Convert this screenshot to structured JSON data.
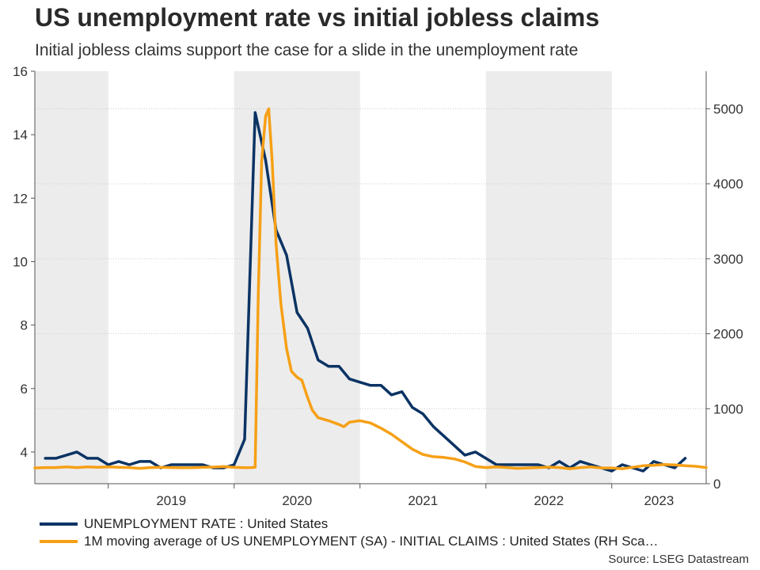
{
  "title": "US unemployment rate vs initial jobless claims",
  "subtitle": "Initial jobless claims support the case for a slide in the unemployment rate",
  "source": "Source: LSEG Datastream",
  "colors": {
    "unemployment": "#0b3364",
    "claims": "#f6a016",
    "shade": "#ececec",
    "grid": "#cccccc",
    "axis": "#555555"
  },
  "legend": [
    {
      "label": "UNEMPLOYMENT RATE : United States",
      "color": "#0b3364"
    },
    {
      "label": "1M moving average of US UNEMPLOYMENT (SA) - INITIAL CLAIMS : United States (RH Sca…",
      "color": "#f6a016"
    }
  ],
  "chart_data": {
    "type": "line",
    "title": "US unemployment rate vs initial jobless claims",
    "subtitle": "Initial jobless claims support the case for a slide in the unemployment rate",
    "x_range": [
      "2018-06",
      "2023-10"
    ],
    "x_tick_labels": [
      "2019",
      "2020",
      "2021",
      "2022",
      "2023"
    ],
    "shaded_years": [
      "2018",
      "2020",
      "2022"
    ],
    "y_left": {
      "min": 3,
      "max": 16,
      "ticks": [
        4,
        6,
        8,
        10,
        12,
        14,
        16
      ]
    },
    "y_right": {
      "min": 0,
      "max": 5500,
      "ticks": [
        0,
        1000,
        2000,
        3000,
        4000,
        5000
      ]
    },
    "grid": "horizontal dotted",
    "legend_position": "bottom",
    "series": [
      {
        "name": "UNEMPLOYMENT RATE : United States",
        "axis": "left",
        "color": "#0b3364",
        "points": [
          [
            "2018-07",
            3.8
          ],
          [
            "2018-08",
            3.8
          ],
          [
            "2018-09",
            3.9
          ],
          [
            "2018-10",
            4.0
          ],
          [
            "2018-11",
            3.8
          ],
          [
            "2018-12",
            3.8
          ],
          [
            "2019-01",
            3.6
          ],
          [
            "2019-02",
            3.7
          ],
          [
            "2019-03",
            3.6
          ],
          [
            "2019-04",
            3.7
          ],
          [
            "2019-05",
            3.7
          ],
          [
            "2019-06",
            3.5
          ],
          [
            "2019-07",
            3.6
          ],
          [
            "2019-08",
            3.6
          ],
          [
            "2019-09",
            3.6
          ],
          [
            "2019-10",
            3.6
          ],
          [
            "2019-11",
            3.5
          ],
          [
            "2019-12",
            3.5
          ],
          [
            "2020-01",
            3.6
          ],
          [
            "2020-02",
            4.4
          ],
          [
            "2020-03",
            14.7
          ],
          [
            "2020-04",
            13.2
          ],
          [
            "2020-05",
            11.0
          ],
          [
            "2020-06",
            10.2
          ],
          [
            "2020-07",
            8.4
          ],
          [
            "2020-08",
            7.9
          ],
          [
            "2020-09",
            6.9
          ],
          [
            "2020-10",
            6.7
          ],
          [
            "2020-11",
            6.7
          ],
          [
            "2020-12",
            6.3
          ],
          [
            "2021-01",
            6.2
          ],
          [
            "2021-02",
            6.1
          ],
          [
            "2021-03",
            6.1
          ],
          [
            "2021-04",
            5.8
          ],
          [
            "2021-05",
            5.9
          ],
          [
            "2021-06",
            5.4
          ],
          [
            "2021-07",
            5.2
          ],
          [
            "2021-08",
            4.8
          ],
          [
            "2021-09",
            4.5
          ],
          [
            "2021-10",
            4.2
          ],
          [
            "2021-11",
            3.9
          ],
          [
            "2021-12",
            4.0
          ],
          [
            "2022-01",
            3.8
          ],
          [
            "2022-02",
            3.6
          ],
          [
            "2022-03",
            3.6
          ],
          [
            "2022-04",
            3.6
          ],
          [
            "2022-05",
            3.6
          ],
          [
            "2022-06",
            3.6
          ],
          [
            "2022-07",
            3.5
          ],
          [
            "2022-08",
            3.7
          ],
          [
            "2022-09",
            3.5
          ],
          [
            "2022-10",
            3.7
          ],
          [
            "2022-11",
            3.6
          ],
          [
            "2022-12",
            3.5
          ],
          [
            "2023-01",
            3.4
          ],
          [
            "2023-02",
            3.6
          ],
          [
            "2023-03",
            3.5
          ],
          [
            "2023-04",
            3.4
          ],
          [
            "2023-05",
            3.7
          ],
          [
            "2023-06",
            3.6
          ],
          [
            "2023-07",
            3.5
          ],
          [
            "2023-08",
            3.8
          ]
        ]
      },
      {
        "name": "1M moving average of US UNEMPLOYMENT (SA) - INITIAL CLAIMS : United States (RH Sca…",
        "axis": "right",
        "color": "#f6a016",
        "points": [
          [
            "2018-06",
            210
          ],
          [
            "2018-07",
            215
          ],
          [
            "2018-08",
            215
          ],
          [
            "2018-09",
            225
          ],
          [
            "2018-10",
            215
          ],
          [
            "2018-11",
            225
          ],
          [
            "2018-12",
            220
          ],
          [
            "2019-01",
            225
          ],
          [
            "2019-02",
            220
          ],
          [
            "2019-03",
            215
          ],
          [
            "2019-04",
            205
          ],
          [
            "2019-05",
            215
          ],
          [
            "2019-06",
            220
          ],
          [
            "2019-07",
            215
          ],
          [
            "2019-08",
            212
          ],
          [
            "2019-09",
            213
          ],
          [
            "2019-10",
            218
          ],
          [
            "2019-11",
            222
          ],
          [
            "2019-12",
            228
          ],
          [
            "2020-01",
            218
          ],
          [
            "2020-02",
            213
          ],
          [
            "2020-02-20",
            215
          ],
          [
            "2020-03-01",
            220
          ],
          [
            "2020-03-10",
            2500
          ],
          [
            "2020-03-20",
            4300
          ],
          [
            "2020-04-01",
            4900
          ],
          [
            "2020-04-10",
            5000
          ],
          [
            "2020-04-20",
            4300
          ],
          [
            "2020-05-01",
            3200
          ],
          [
            "2020-05-15",
            2400
          ],
          [
            "2020-06-01",
            1800
          ],
          [
            "2020-06-15",
            1500
          ],
          [
            "2020-07-01",
            1420
          ],
          [
            "2020-07-15",
            1380
          ],
          [
            "2020-08-01",
            1150
          ],
          [
            "2020-08-15",
            980
          ],
          [
            "2020-09-01",
            880
          ],
          [
            "2020-10-01",
            840
          ],
          [
            "2020-11-01",
            790
          ],
          [
            "2020-11-15",
            760
          ],
          [
            "2020-12-01",
            820
          ],
          [
            "2021-01-01",
            840
          ],
          [
            "2021-02-01",
            810
          ],
          [
            "2021-03-01",
            740
          ],
          [
            "2021-04-01",
            660
          ],
          [
            "2021-05-01",
            560
          ],
          [
            "2021-06-01",
            460
          ],
          [
            "2021-07-01",
            390
          ],
          [
            "2021-08-01",
            360
          ],
          [
            "2021-09-01",
            350
          ],
          [
            "2021-10-01",
            330
          ],
          [
            "2021-11-01",
            290
          ],
          [
            "2021-12-01",
            230
          ],
          [
            "2022-01-01",
            215
          ],
          [
            "2022-02-01",
            225
          ],
          [
            "2022-03-01",
            215
          ],
          [
            "2022-04-01",
            205
          ],
          [
            "2022-05-01",
            210
          ],
          [
            "2022-06-01",
            215
          ],
          [
            "2022-07-01",
            222
          ],
          [
            "2022-08-01",
            215
          ],
          [
            "2022-09-01",
            200
          ],
          [
            "2022-10-01",
            215
          ],
          [
            "2022-11-01",
            225
          ],
          [
            "2022-12-01",
            210
          ],
          [
            "2023-01-01",
            210
          ],
          [
            "2023-02-01",
            200
          ],
          [
            "2023-03-01",
            220
          ],
          [
            "2023-04-01",
            240
          ],
          [
            "2023-05-01",
            245
          ],
          [
            "2023-06-01",
            255
          ],
          [
            "2023-07-01",
            250
          ],
          [
            "2023-08-01",
            240
          ],
          [
            "2023-09-01",
            232
          ],
          [
            "2023-10-01",
            215
          ]
        ]
      }
    ]
  }
}
